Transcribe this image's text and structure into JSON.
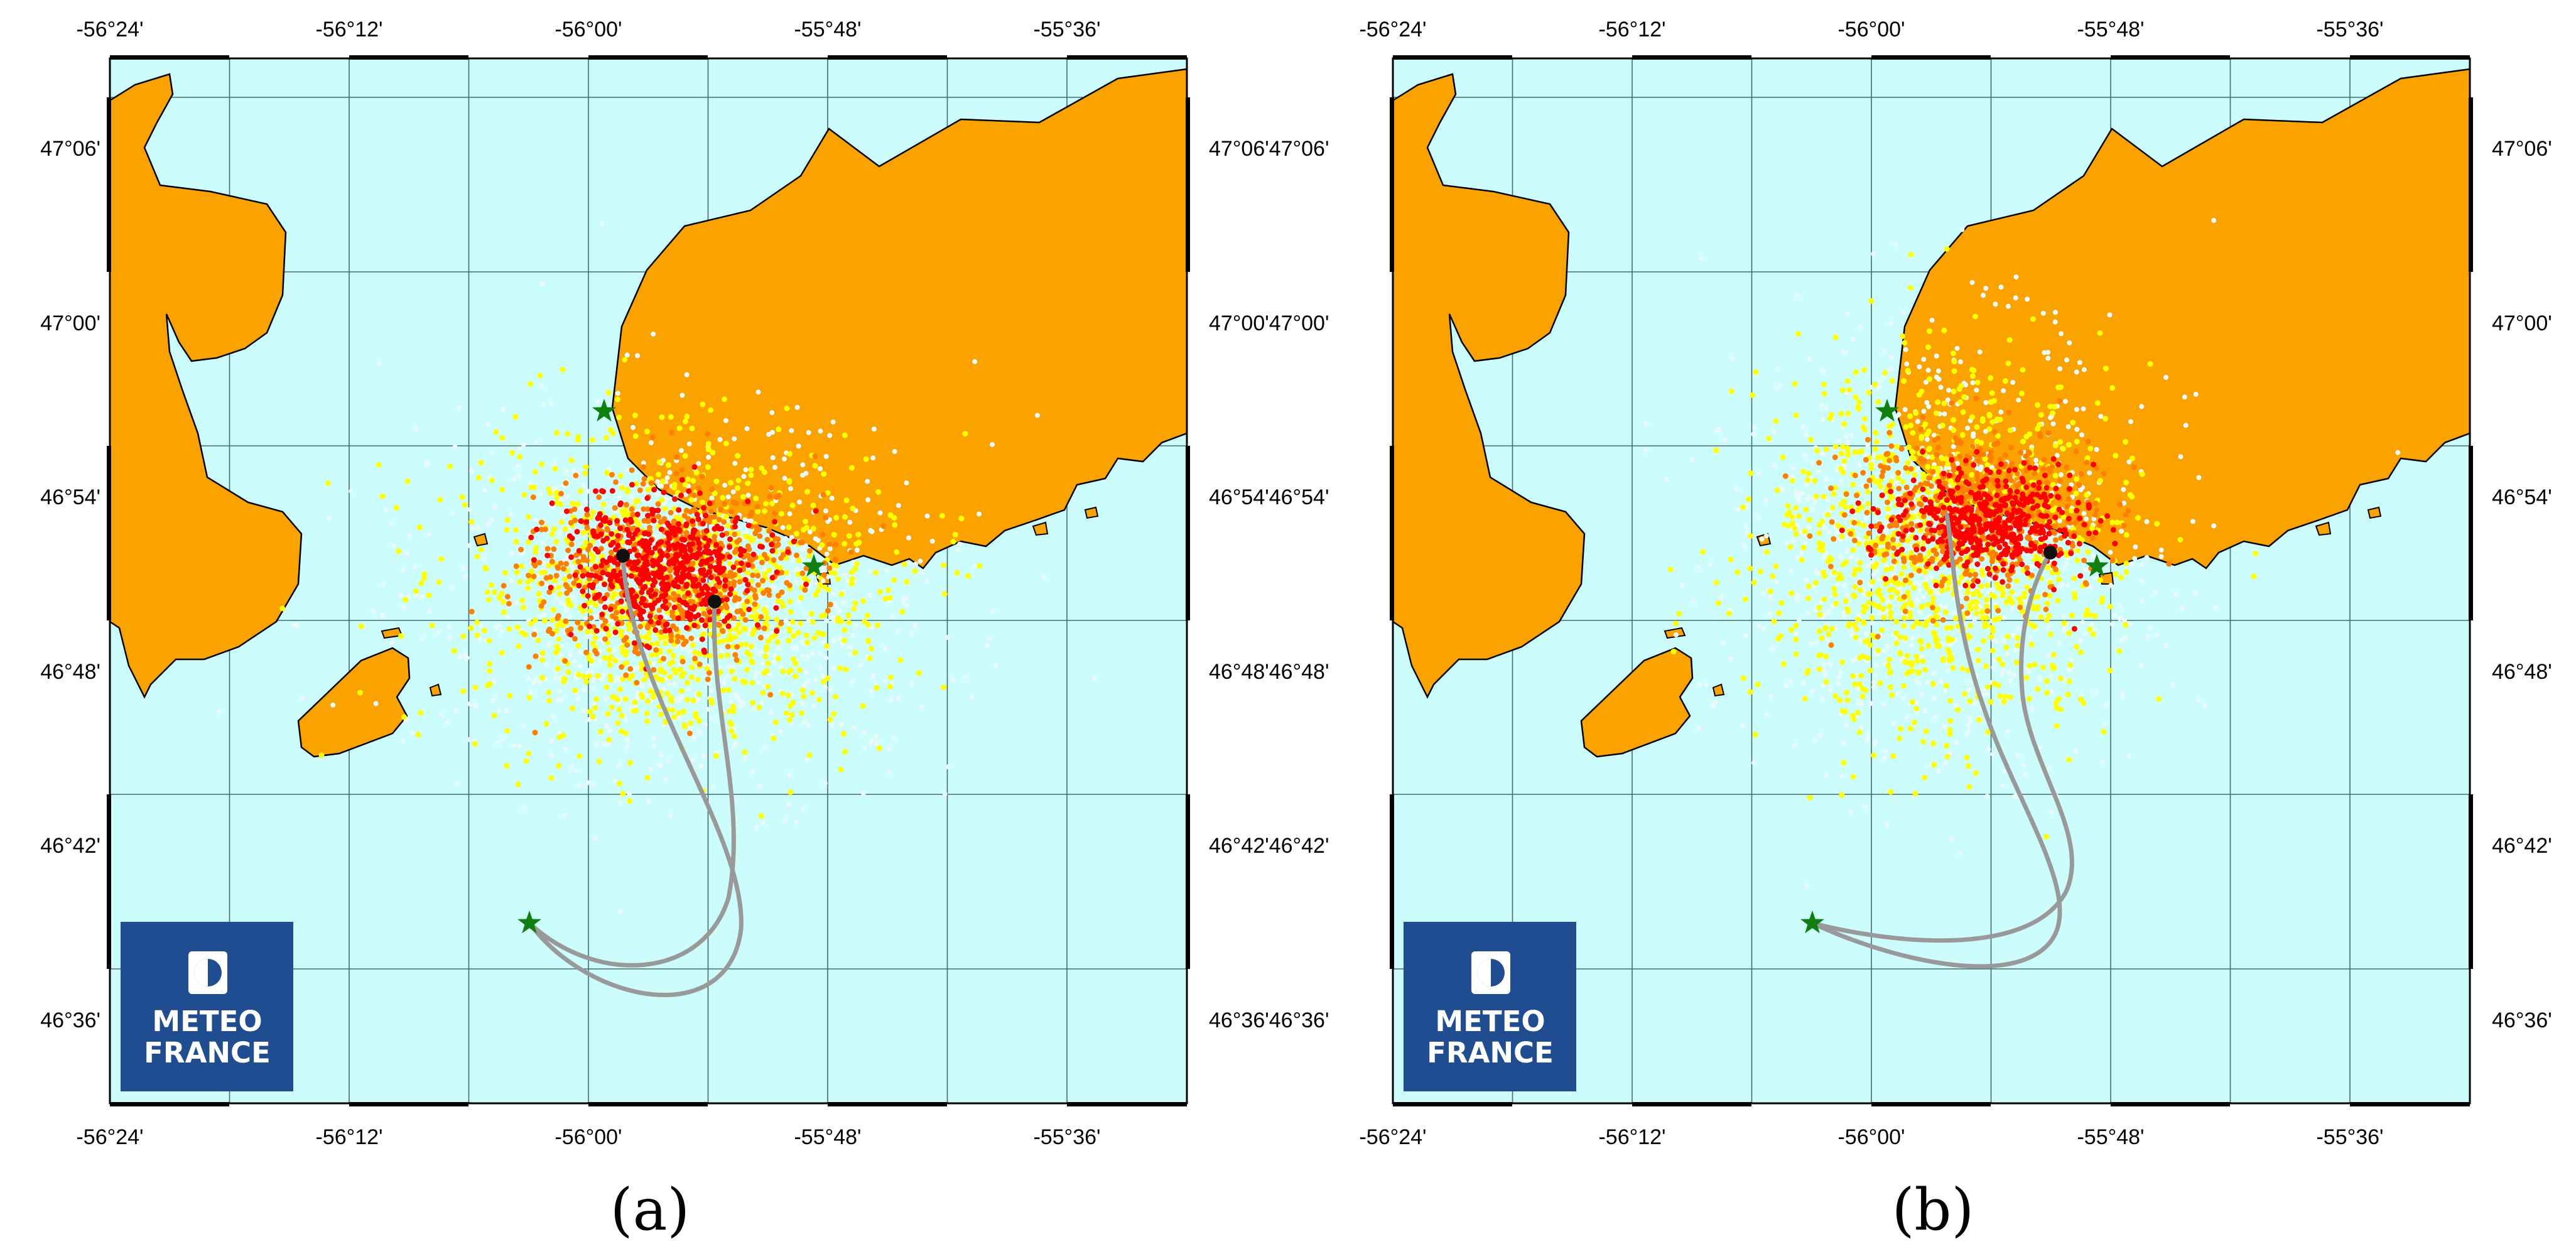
{
  "figure": {
    "panels": [
      {
        "id": "a",
        "caption": "(a)",
        "x_ticks": [
          "-56°24'",
          "-56°12'",
          "-56°00'",
          "-55°48'",
          "-55°36'"
        ],
        "y_ticks_left": [
          "47°06'",
          "47°00'",
          "46°54'",
          "46°48'",
          "46°42'",
          "46°36'"
        ],
        "y_ticks_right": [
          "47°06'47°06'",
          "47°00'47°00'",
          "46°54'46°54'",
          "46°48'46°48'",
          "46°42'46°42'",
          "46°36'46°36'"
        ],
        "logo": {
          "line1": "METEO",
          "line2": "FRANCE"
        }
      },
      {
        "id": "b",
        "caption": "(b)",
        "x_ticks": [
          "-56°24'",
          "-56°12'",
          "-56°00'",
          "-55°48'",
          "-55°36'"
        ],
        "y_ticks_left": [],
        "y_ticks_right": [
          "47°06'",
          "47°00'",
          "46°54'",
          "46°48'",
          "46°42'",
          "46°36'"
        ],
        "logo": {
          "line1": "METEO",
          "line2": "FRANCE"
        }
      }
    ],
    "colors": {
      "sea": "#ccfcfc",
      "land": "#f9a200",
      "particles_outer": "#e8fafa",
      "particles_mid": "#ffff00",
      "particles_inner": "#ff8000",
      "particles_core": "#ff0000",
      "trajectory": "#999999",
      "star": "#0f7f0f",
      "logo_bg": "#1f4d8f"
    },
    "icons": [
      "star-marker-icon",
      "drift-end-dot-icon",
      "meteo-france-logo-icon"
    ]
  }
}
